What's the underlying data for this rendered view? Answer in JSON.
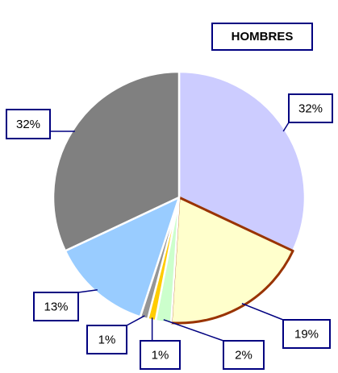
{
  "chart_data": {
    "type": "pie",
    "title": "HOMBRES",
    "values": [
      32,
      19,
      2,
      1,
      1,
      13,
      32
    ],
    "value_labels": [
      "32%",
      "19%",
      "2%",
      "1%",
      "1%",
      "13%",
      "32%"
    ],
    "colors": [
      "#ccccff",
      "#ffffcc",
      "#ccffcc",
      "#ffcc00",
      "#969696",
      "#99ccff",
      "#808080"
    ],
    "edgecolors": [
      "#ffffff",
      "#993300",
      "#ffffff",
      "#ffffff",
      "#ffffff",
      "#ffffff",
      "#ffffff"
    ]
  }
}
